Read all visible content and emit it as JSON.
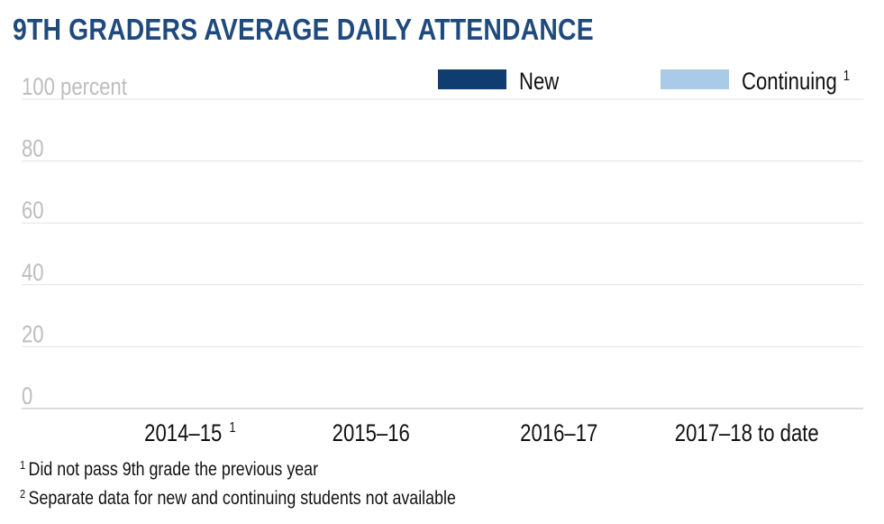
{
  "title": "9TH GRADERS AVERAGE DAILY ATTENDANCE",
  "colors": {
    "title": "#1f4a7d",
    "new": "#0f3d70",
    "continuing": "#a9cbe8",
    "tick": "#bdbdbd",
    "grid": "#e3e3e3"
  },
  "chart_data": {
    "type": "bar",
    "title": "9TH GRADERS AVERAGE DAILY ATTENDANCE",
    "categories": [
      "2014–15",
      "2015–16",
      "2016–17",
      "2017–18 to date"
    ],
    "category_marks": [
      "1",
      "",
      "",
      ""
    ],
    "series": [
      {
        "name": "New",
        "values": [
          null,
          null,
          null,
          null
        ],
        "color": "#0f3d70"
      },
      {
        "name": "Continuing",
        "mark": "1",
        "values": [
          null,
          null,
          null,
          null
        ],
        "color": "#a9cbe8"
      }
    ],
    "yticks": [
      "100 percent",
      "80",
      "60",
      "40",
      "20",
      "0"
    ],
    "ytick_values": [
      100,
      80,
      60,
      40,
      20,
      0
    ],
    "ylim": [
      0,
      100
    ],
    "grid": true,
    "legend_position": "top-right"
  },
  "footnotes": [
    {
      "mark": "1",
      "text": "Did not pass 9th grade the previous year"
    },
    {
      "mark": "2",
      "text": "Separate data for new and continuing students not available"
    }
  ]
}
